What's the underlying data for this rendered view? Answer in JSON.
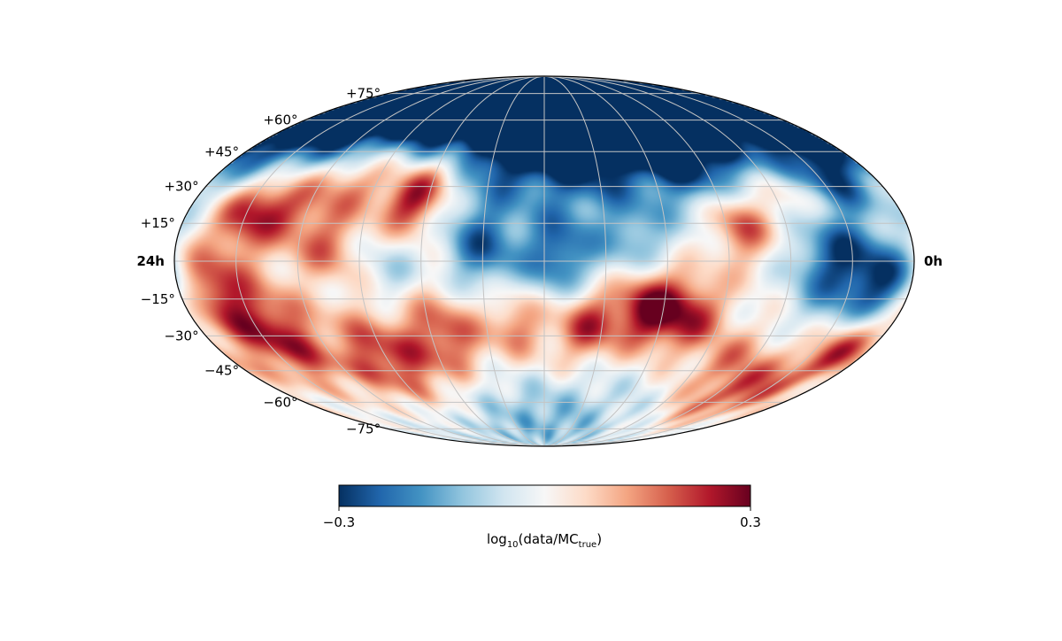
{
  "chart_data": {
    "type": "heatmap",
    "projection": "mollweide",
    "title": "",
    "lat_ticks": [
      "+75°",
      "+60°",
      "+45°",
      "+30°",
      "+15°",
      "−15°",
      "−30°",
      "−45°",
      "−60°",
      "−75°"
    ],
    "lat_values": [
      75,
      60,
      45,
      30,
      15,
      -15,
      -30,
      -45,
      -60,
      -75
    ],
    "ra_labels": {
      "left": "24h",
      "right": "0h"
    },
    "graticule": {
      "lat_step_deg": 15,
      "lon_step_deg": 30,
      "grid": true
    },
    "colormap": "RdBu_r",
    "colors": {
      "low": "#053061",
      "mid": "#f7f7f7",
      "high": "#67001f",
      "grid": "#c4c4c4"
    },
    "colorbar": {
      "vmin": -0.3,
      "vmax": 0.3,
      "tick_min_label": "−0.3",
      "tick_max_label": "0.3",
      "label_main": "log",
      "label_sub": "10",
      "label_mid": "(data/MC",
      "label_sub2": "true",
      "label_end": ")",
      "orientation": "horizontal",
      "placement": "bottom"
    },
    "features": [
      {
        "ra_h": 10.0,
        "dec": 78,
        "value": -0.28,
        "width_deg": 60
      },
      {
        "ra_h": 4.0,
        "dec": 80,
        "value": -0.3,
        "width_deg": 55
      },
      {
        "ra_h": 16.0,
        "dec": 76,
        "value": -0.26,
        "width_deg": 55
      },
      {
        "ra_h": 22.0,
        "dec": 70,
        "value": -0.2,
        "width_deg": 45
      },
      {
        "ra_h": 13.0,
        "dec": 55,
        "value": -0.2,
        "width_deg": 35
      },
      {
        "ra_h": 8.0,
        "dec": 60,
        "value": -0.18,
        "width_deg": 35
      },
      {
        "ra_h": 16.5,
        "dec": 25,
        "value": 0.3,
        "width_deg": 20
      },
      {
        "ra_h": 18.5,
        "dec": 35,
        "value": 0.22,
        "width_deg": 25
      },
      {
        "ra_h": 20.5,
        "dec": 22,
        "value": 0.2,
        "width_deg": 25
      },
      {
        "ra_h": 15.5,
        "dec": 40,
        "value": 0.15,
        "width_deg": 20
      },
      {
        "ra_h": 14.0,
        "dec": 5,
        "value": -0.22,
        "width_deg": 25
      },
      {
        "ra_h": 11.5,
        "dec": 2,
        "value": -0.24,
        "width_deg": 25
      },
      {
        "ra_h": 9.0,
        "dec": 8,
        "value": -0.14,
        "width_deg": 25
      },
      {
        "ra_h": 2.5,
        "dec": 0,
        "value": -0.26,
        "width_deg": 30
      },
      {
        "ra_h": 0.8,
        "dec": -10,
        "value": -0.25,
        "width_deg": 25
      },
      {
        "ra_h": 1.5,
        "dec": 35,
        "value": -0.16,
        "width_deg": 20
      },
      {
        "ra_h": 5.5,
        "dec": 15,
        "value": 0.22,
        "width_deg": 22
      },
      {
        "ra_h": 3.5,
        "dec": 25,
        "value": 0.12,
        "width_deg": 20
      },
      {
        "ra_h": 8.5,
        "dec": -18,
        "value": 0.3,
        "width_deg": 22
      },
      {
        "ra_h": 7.0,
        "dec": -22,
        "value": 0.22,
        "width_deg": 22
      },
      {
        "ra_h": 10.5,
        "dec": -25,
        "value": 0.22,
        "width_deg": 22
      },
      {
        "ra_h": 1.0,
        "dec": -35,
        "value": 0.22,
        "width_deg": 20
      },
      {
        "ra_h": 3.0,
        "dec": -55,
        "value": 0.2,
        "width_deg": 25
      },
      {
        "ra_h": 5.0,
        "dec": -40,
        "value": 0.12,
        "width_deg": 20
      },
      {
        "ra_h": 13.0,
        "dec": -25,
        "value": 0.15,
        "width_deg": 20
      },
      {
        "ra_h": 15.5,
        "dec": -30,
        "value": 0.2,
        "width_deg": 25
      },
      {
        "ra_h": 18.0,
        "dec": -40,
        "value": 0.22,
        "width_deg": 28
      },
      {
        "ra_h": 21.5,
        "dec": -30,
        "value": 0.25,
        "width_deg": 30
      },
      {
        "ra_h": 23.0,
        "dec": -10,
        "value": 0.2,
        "width_deg": 25
      },
      {
        "ra_h": 22.0,
        "dec": 20,
        "value": 0.22,
        "width_deg": 22
      },
      {
        "ra_h": 12.0,
        "dec": -68,
        "value": -0.15,
        "width_deg": 40
      },
      {
        "ra_h": 12.0,
        "dec": -45,
        "value": 0.05,
        "width_deg": 30
      },
      {
        "ra_h": 19.0,
        "dec": 5,
        "value": 0.14,
        "width_deg": 20
      },
      {
        "ra_h": 17.0,
        "dec": -5,
        "value": -0.08,
        "width_deg": 20
      },
      {
        "ra_h": 6.5,
        "dec": 40,
        "value": -0.14,
        "width_deg": 25
      },
      {
        "ra_h": 10.5,
        "dec": 38,
        "value": -0.1,
        "width_deg": 25
      }
    ]
  }
}
